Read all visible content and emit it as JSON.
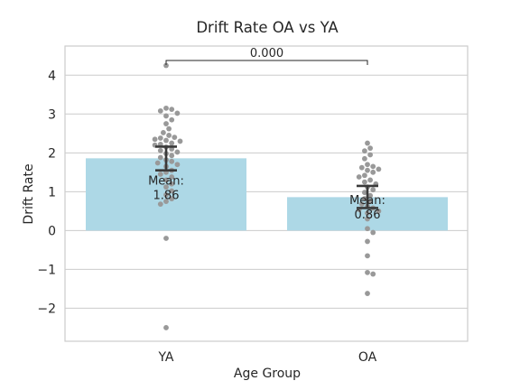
{
  "chart_data": {
    "type": "bar",
    "title": "Drift Rate OA vs YA",
    "xlabel": "Age Group",
    "ylabel": "Drift Rate",
    "categories": [
      "YA",
      "OA"
    ],
    "values": [
      1.86,
      0.86
    ],
    "bar_color": "#add8e6",
    "point_color": "#999999",
    "error_bars": [
      {
        "low": 1.55,
        "high": 2.16
      },
      {
        "low": 0.58,
        "high": 1.15
      }
    ],
    "mean_labels": [
      "Mean:\n1.86",
      "Mean:\n0.86"
    ],
    "annotation": {
      "text": "0.000",
      "from": "YA",
      "to": "OA"
    },
    "ylim": [
      -2.85,
      4.75
    ],
    "yticks": [
      -2,
      -1,
      0,
      1,
      2,
      3,
      4
    ],
    "ytick_labels": [
      "−2",
      "−1",
      "0",
      "1",
      "2",
      "3",
      "4"
    ],
    "grid": true,
    "points": [
      [
        4.25,
        3.15,
        3.12,
        3.08,
        3.02,
        2.95,
        2.85,
        2.75,
        2.62,
        2.52,
        2.45,
        2.4,
        2.38,
        2.35,
        2.32,
        2.3,
        2.25,
        2.22,
        2.2,
        2.15,
        2.1,
        2.06,
        2.02,
        1.98,
        1.93,
        1.88,
        1.82,
        1.78,
        1.74,
        1.7,
        1.65,
        1.55,
        1.5,
        1.45,
        1.38,
        1.3,
        1.2,
        1.12,
        1.02,
        0.92,
        0.82,
        0.75,
        0.68,
        -0.2,
        -2.5
      ],
      [
        2.25,
        2.12,
        2.05,
        1.95,
        1.85,
        1.7,
        1.65,
        1.62,
        1.58,
        1.55,
        1.5,
        1.42,
        1.38,
        1.3,
        1.25,
        1.2,
        1.12,
        1.05,
        0.98,
        0.9,
        0.82,
        0.75,
        0.68,
        0.62,
        0.58,
        0.54,
        0.5,
        0.45,
        0.3,
        0.05,
        -0.05,
        -0.28,
        -0.65,
        -1.08,
        -1.12,
        -1.62
      ]
    ]
  }
}
